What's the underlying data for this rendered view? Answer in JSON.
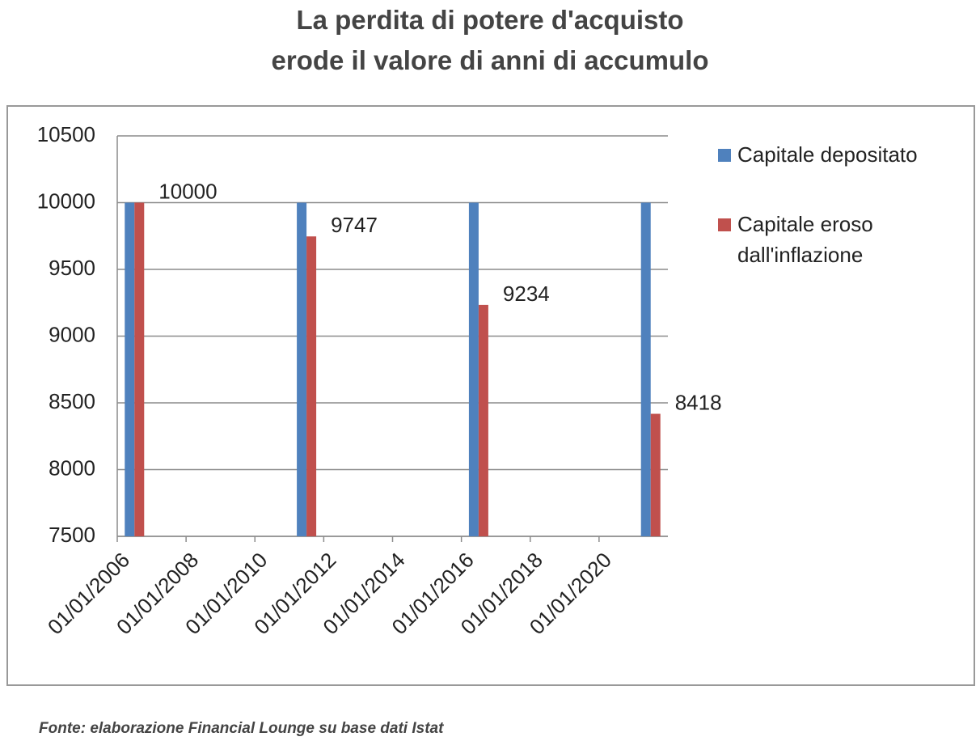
{
  "chart_data": {
    "type": "bar",
    "title": [
      "La perdita di potere d'acquisto",
      "erode il valore di anni di accumulo"
    ],
    "source": "Fonte: elaborazione Financial Lounge su base dati Istat",
    "x": [
      2006.5,
      2011.5,
      2016.5,
      2021.5
    ],
    "series": [
      {
        "name": "Capitale depositato",
        "color": "#4f81bd",
        "values": [
          10000,
          10000,
          10000,
          10000
        ]
      },
      {
        "name": "Capitale eroso dall'inflazione",
        "color": "#c0504d",
        "values": [
          10000,
          9747,
          9234,
          8418
        ],
        "data_labels": true
      }
    ],
    "xlim": [
      2006,
      2022
    ],
    "xticks": [
      {
        "value": 2006,
        "label": "01/01/2006"
      },
      {
        "value": 2008,
        "label": "01/01/2008"
      },
      {
        "value": 2010,
        "label": "01/01/2010"
      },
      {
        "value": 2012,
        "label": "01/01/2012"
      },
      {
        "value": 2014,
        "label": "01/01/2014"
      },
      {
        "value": 2016,
        "label": "01/01/2016"
      },
      {
        "value": 2018,
        "label": "01/01/2018"
      },
      {
        "value": 2020,
        "label": "01/01/2020"
      }
    ],
    "ylim": [
      7500,
      10500
    ],
    "yticks": [
      7500,
      8000,
      8500,
      9000,
      9500,
      10000,
      10500
    ],
    "grid": true,
    "legend": "right"
  }
}
